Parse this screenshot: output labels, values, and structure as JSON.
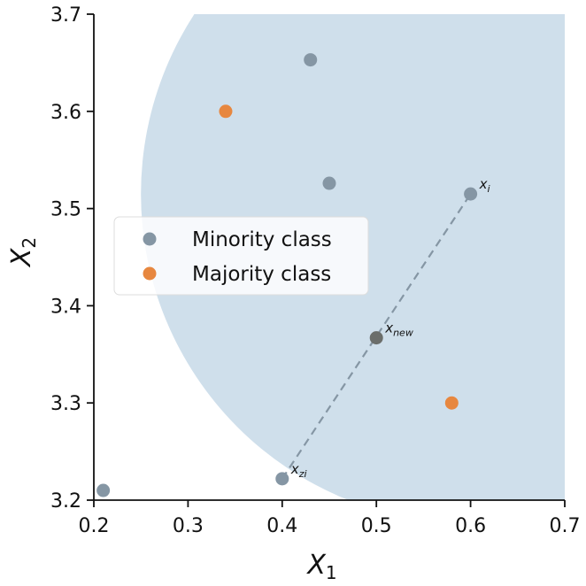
{
  "chart_data": {
    "type": "scatter",
    "xlabel": "X",
    "xlabel_sub": "1",
    "ylabel": "X",
    "ylabel_sub": "2",
    "xlim": [
      0.2,
      0.7
    ],
    "ylim": [
      3.2,
      3.7
    ],
    "xticks": [
      "0.2",
      "0.3",
      "0.4",
      "0.5",
      "0.6",
      "0.7"
    ],
    "yticks": [
      "3.2",
      "3.3",
      "3.4",
      "3.5",
      "3.6",
      "3.7"
    ],
    "grid": false,
    "legend_position": "center-left",
    "neighborhood_region": {
      "shape": "circle",
      "center": [
        0.6,
        3.515
      ],
      "radius_x_units": 0.35,
      "color": "#cfdfeb"
    },
    "series": [
      {
        "name": "Minority class",
        "color": "#8596a4",
        "points": [
          {
            "x": 0.21,
            "y": 3.21
          },
          {
            "x": 0.4,
            "y": 3.222
          },
          {
            "x": 0.43,
            "y": 3.653
          },
          {
            "x": 0.45,
            "y": 3.526
          },
          {
            "x": 0.6,
            "y": 3.515
          }
        ]
      },
      {
        "name": "Majority class",
        "color": "#e7873f",
        "points": [
          {
            "x": 0.34,
            "y": 3.6
          },
          {
            "x": 0.58,
            "y": 3.3
          }
        ]
      }
    ],
    "synthetic_point": {
      "x": 0.5,
      "y": 3.367,
      "color": "#6b6e6b"
    },
    "interpolation_line": {
      "from": [
        0.4,
        3.222
      ],
      "to": [
        0.6,
        3.515
      ],
      "style": "dashed",
      "color": "#8596a4"
    },
    "annotations": [
      {
        "base": "x",
        "sub": "i",
        "x": 0.6,
        "y": 3.515
      },
      {
        "base": "x",
        "sub": "new",
        "x": 0.5,
        "y": 3.367
      },
      {
        "base": "x",
        "sub": "zi",
        "x": 0.4,
        "y": 3.222
      }
    ]
  }
}
